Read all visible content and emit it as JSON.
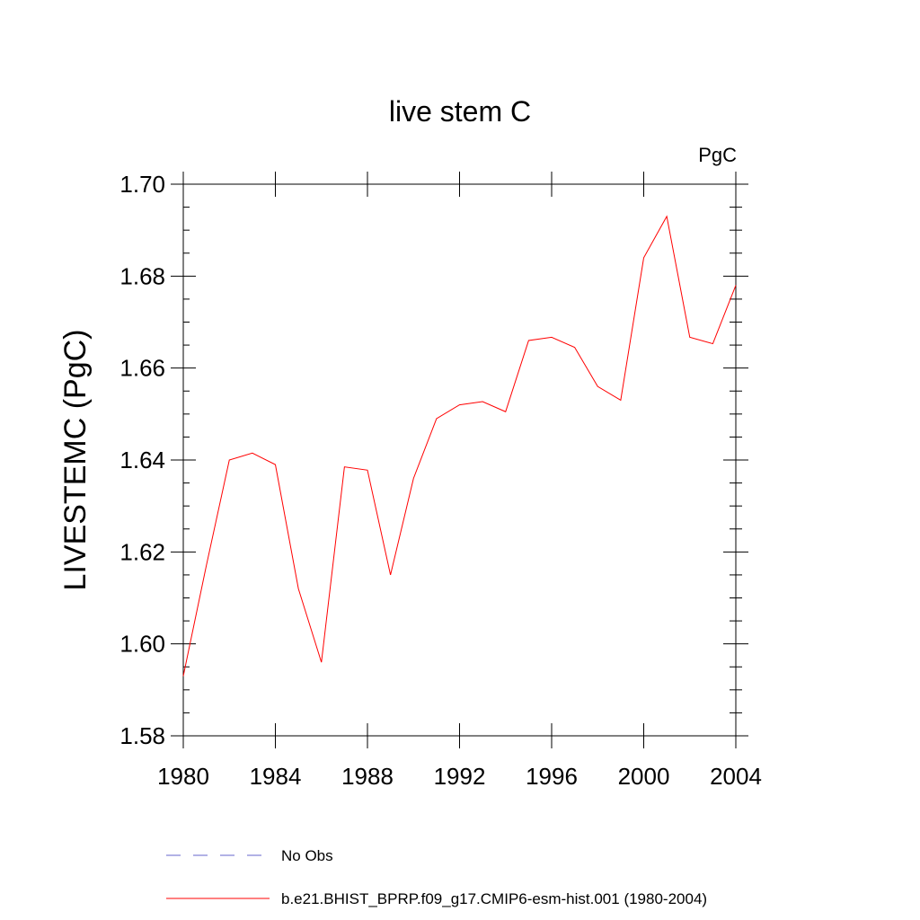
{
  "chart_data": {
    "type": "line",
    "title": "live stem C",
    "units_label": "PgC",
    "xlabel": "",
    "ylabel": "LIVESTEMC  (PgC)",
    "xlim": [
      1980,
      2004
    ],
    "ylim": [
      1.58,
      1.7
    ],
    "x_ticks": [
      "1980",
      "1984",
      "1988",
      "1992",
      "1996",
      "2000",
      "2004"
    ],
    "y_ticks": [
      "1.58",
      "1.60",
      "1.62",
      "1.64",
      "1.66",
      "1.68",
      "1.70"
    ],
    "grid": false,
    "legend_position": "bottom",
    "legend": [
      {
        "label": "No Obs",
        "color": "#6666cc",
        "style": "dashed"
      },
      {
        "label": "b.e21.BHIST_BPRP.f09_g17.CMIP6-esm-hist.001 (1980-2004)",
        "color": "#ff0000",
        "style": "solid"
      }
    ],
    "series": [
      {
        "name": "b.e21.BHIST_BPRP.f09_g17.CMIP6-esm-hist.001 (1980-2004)",
        "color": "#ff0000",
        "x": [
          1980,
          1981,
          1982,
          1983,
          1984,
          1985,
          1986,
          1987,
          1988,
          1989,
          1990,
          1991,
          1992,
          1993,
          1994,
          1995,
          1996,
          1997,
          1998,
          1999,
          2000,
          2001,
          2002,
          2003,
          2004
        ],
        "y": [
          1.593,
          1.617,
          1.64,
          1.6415,
          1.639,
          1.612,
          1.596,
          1.6385,
          1.6378,
          1.615,
          1.636,
          1.649,
          1.652,
          1.6527,
          1.6505,
          1.666,
          1.6667,
          1.6645,
          1.656,
          1.653,
          1.684,
          1.693,
          1.6667,
          1.6653,
          1.678
        ]
      }
    ]
  }
}
